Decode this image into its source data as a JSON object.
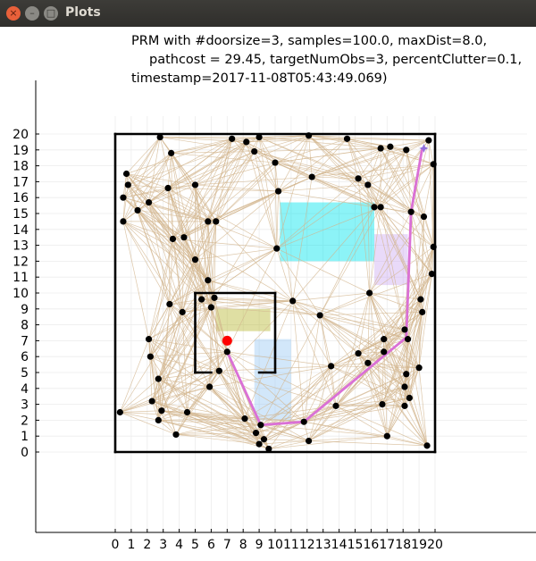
{
  "window": {
    "title": "Plots",
    "close_glyph": "×",
    "minimize_glyph": "–",
    "maximize_glyph": "□"
  },
  "chart_title": {
    "line1": "PRM with #doorsize=3, samples=100.0, maxDist=8.0,",
    "line2": "pathcost = 29.45, targetNumObs=3, percentClutter=0.1,",
    "line3": "timestamp=2017-11-08T05:43:49.069)"
  },
  "chart_data": {
    "type": "scatter",
    "xlim": [
      -5,
      25
    ],
    "ylim": [
      -5,
      25
    ],
    "xticks": [
      "0",
      "1",
      "2",
      "3",
      "4",
      "5",
      "6",
      "7",
      "8",
      "9",
      "10",
      "11",
      "12",
      "13",
      "14",
      "15",
      "16",
      "17",
      "18",
      "19",
      "20"
    ],
    "yticks": [
      "0",
      "1",
      "2",
      "3",
      "4",
      "5",
      "6",
      "7",
      "8",
      "9",
      "10",
      "11",
      "12",
      "13",
      "14",
      "15",
      "16",
      "17",
      "18",
      "19",
      "20"
    ],
    "grid": true,
    "colors": {
      "edge": "#d2b48c",
      "node": "#000000",
      "path": "#da70d6",
      "start": "#ff0000",
      "goal": "#9370db",
      "walls": "#000000"
    },
    "walls": [
      [
        [
          0,
          0
        ],
        [
          20,
          0
        ]
      ],
      [
        [
          20,
          0
        ],
        [
          20,
          20
        ]
      ],
      [
        [
          20,
          20
        ],
        [
          0,
          20
        ]
      ],
      [
        [
          0,
          20
        ],
        [
          0,
          0
        ]
      ],
      [
        [
          5,
          5
        ],
        [
          5,
          10
        ]
      ],
      [
        [
          5,
          10
        ],
        [
          10,
          10
        ]
      ],
      [
        [
          10,
          10
        ],
        [
          10,
          5
        ]
      ],
      [
        [
          5,
          5
        ],
        [
          6,
          5
        ]
      ],
      [
        [
          9,
          5
        ],
        [
          10,
          5
        ]
      ]
    ],
    "obstacles": [
      {
        "x0": 10.3,
        "y0": 12,
        "x1": 16.2,
        "y1": 15.7,
        "color": "#00e5ee",
        "opacity": 0.45
      },
      {
        "x0": 16.2,
        "y0": 10.5,
        "x1": 18.3,
        "y1": 13.7,
        "color": "#c8a2f0",
        "opacity": 0.4
      },
      {
        "x0": 6.3,
        "y0": 7.6,
        "x1": 9.7,
        "y1": 9,
        "color": "#b7b734",
        "opacity": 0.45
      },
      {
        "x0": 8.7,
        "y0": 2,
        "x1": 11,
        "y1": 7.1,
        "color": "#9ccaf4",
        "opacity": 0.45
      }
    ],
    "nodes": [
      [
        2.8,
        19.8
      ],
      [
        7.3,
        19.7
      ],
      [
        8.2,
        19.5
      ],
      [
        9,
        19.8
      ],
      [
        12.1,
        19.9
      ],
      [
        14.5,
        19.7
      ],
      [
        17.2,
        19.2
      ],
      [
        16.6,
        19.1
      ],
      [
        18.2,
        19
      ],
      [
        19.6,
        19.6
      ],
      [
        3.5,
        18.8
      ],
      [
        8.7,
        18.9
      ],
      [
        10,
        18.2
      ],
      [
        12.3,
        17.3
      ],
      [
        0.7,
        17.5
      ],
      [
        0.8,
        16.8
      ],
      [
        3.3,
        16.6
      ],
      [
        5,
        16.8
      ],
      [
        15.2,
        17.2
      ],
      [
        15.8,
        16.8
      ],
      [
        19.9,
        18.1
      ],
      [
        0.5,
        16
      ],
      [
        10.2,
        16.4
      ],
      [
        2.1,
        15.7
      ],
      [
        1.4,
        15.2
      ],
      [
        16.2,
        15.4
      ],
      [
        16.6,
        15.4
      ],
      [
        0.5,
        14.5
      ],
      [
        5.8,
        14.5
      ],
      [
        6.3,
        14.5
      ],
      [
        18.5,
        15.1
      ],
      [
        19.3,
        14.8
      ],
      [
        3.6,
        13.4
      ],
      [
        4.3,
        13.5
      ],
      [
        19.9,
        12.9
      ],
      [
        10.1,
        12.8
      ],
      [
        5,
        12.1
      ],
      [
        19.8,
        11.2
      ],
      [
        5.8,
        10.8
      ],
      [
        15.9,
        10
      ],
      [
        11.1,
        9.5
      ],
      [
        6.2,
        9.7
      ],
      [
        5.4,
        9.6
      ],
      [
        3.4,
        9.3
      ],
      [
        19.1,
        9.6
      ],
      [
        6,
        9.1
      ],
      [
        4.2,
        8.8
      ],
      [
        19.2,
        8.8
      ],
      [
        12.8,
        8.6
      ],
      [
        18.1,
        7.7
      ],
      [
        2.1,
        7.1
      ],
      [
        18.3,
        7.1
      ],
      [
        16.8,
        7.1
      ],
      [
        16.8,
        6.3
      ],
      [
        15.2,
        6.2
      ],
      [
        2.2,
        6
      ],
      [
        15.8,
        5.6
      ],
      [
        13.5,
        5.4
      ],
      [
        19,
        5.3
      ],
      [
        18.2,
        4.9
      ],
      [
        6.5,
        5.1
      ],
      [
        2.7,
        4.6
      ],
      [
        5.9,
        4.1
      ],
      [
        18.1,
        4.1
      ],
      [
        18.4,
        3.4
      ],
      [
        2.3,
        3.2
      ],
      [
        13.8,
        2.9
      ],
      [
        16.7,
        3
      ],
      [
        18.1,
        2.9
      ],
      [
        0.3,
        2.5
      ],
      [
        2.9,
        2.6
      ],
      [
        4.5,
        2.5
      ],
      [
        2.7,
        2
      ],
      [
        8.1,
        2.1
      ],
      [
        11.8,
        1.9
      ],
      [
        9.1,
        1.7
      ],
      [
        8.8,
        1.2
      ],
      [
        9.3,
        0.8
      ],
      [
        3.8,
        1.1
      ],
      [
        17,
        1
      ],
      [
        12.1,
        0.7
      ],
      [
        9,
        0.5
      ],
      [
        9.6,
        0.2
      ],
      [
        19.5,
        0.4
      ],
      [
        7,
        6.3
      ]
    ],
    "path": [
      [
        7,
        6.3
      ],
      [
        9.1,
        1.7
      ],
      [
        11.8,
        1.9
      ],
      [
        18.2,
        7.2
      ],
      [
        18.5,
        15.1
      ],
      [
        19.2,
        19.1
      ]
    ],
    "start": [
      7,
      7
    ],
    "goal": [
      19.3,
      19.1
    ]
  }
}
